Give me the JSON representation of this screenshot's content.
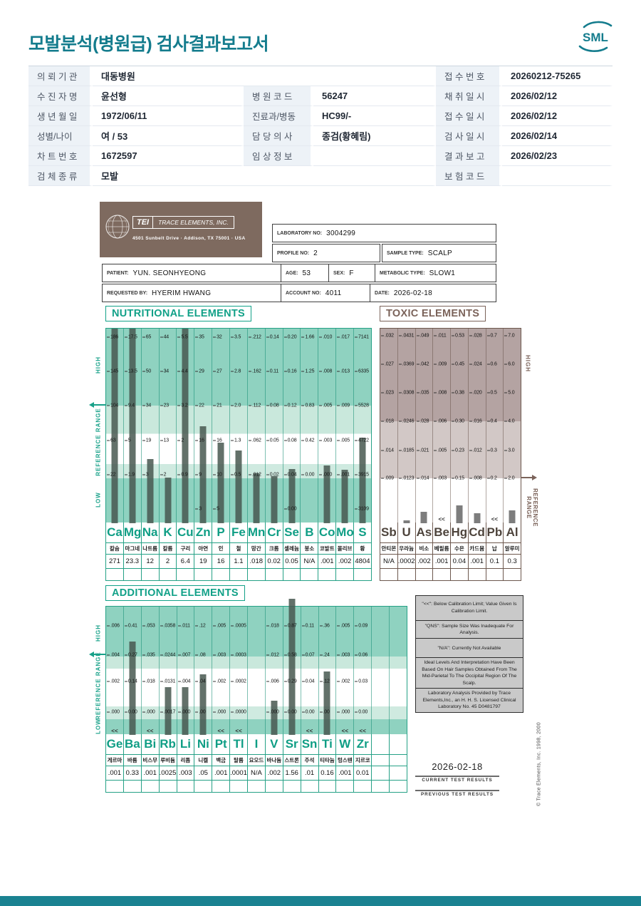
{
  "header": {
    "title": "모발분석(병원급) 검사결과보고서",
    "logo": "SML",
    "accent_color": "#147c8d"
  },
  "info_table": {
    "rows": [
      [
        {
          "t": "l",
          "x": "의 뢰 기 관"
        },
        {
          "t": "v",
          "x": "대동병원",
          "s": 3
        },
        {
          "t": "l",
          "x": "접 수 번 호"
        },
        {
          "t": "v",
          "x": "20260212-75265"
        }
      ],
      [
        {
          "t": "l",
          "x": "수 진 자 명"
        },
        {
          "t": "v",
          "x": "윤선형"
        },
        {
          "t": "l",
          "x": "병 원 코 드"
        },
        {
          "t": "v",
          "x": "56247"
        },
        {
          "t": "l",
          "x": "채 취 일 시"
        },
        {
          "t": "v",
          "x": "2026/02/12"
        }
      ],
      [
        {
          "t": "l",
          "x": "생 년 월 일"
        },
        {
          "t": "v",
          "x": "1972/06/11"
        },
        {
          "t": "l",
          "x": "진료과/병동"
        },
        {
          "t": "v",
          "x": "HC99/-"
        },
        {
          "t": "l",
          "x": "접 수 일 시"
        },
        {
          "t": "v",
          "x": "2026/02/12"
        }
      ],
      [
        {
          "t": "l",
          "x": "성별/나이"
        },
        {
          "t": "v",
          "x": "여 / 53"
        },
        {
          "t": "l",
          "x": "담 당 의 사"
        },
        {
          "t": "v",
          "x": "종검(황혜림)"
        },
        {
          "t": "l",
          "x": "검 사 일 시"
        },
        {
          "t": "v",
          "x": "2026/02/14"
        }
      ],
      [
        {
          "t": "l",
          "x": "차 트 번 호"
        },
        {
          "t": "v",
          "x": "1672597"
        },
        {
          "t": "l",
          "x": "임 상 정 보"
        },
        {
          "t": "v",
          "x": ""
        },
        {
          "t": "l",
          "x": "결 과 보 고"
        },
        {
          "t": "v",
          "x": "2026/02/23"
        }
      ],
      [
        {
          "t": "l",
          "x": "검 체 종 류"
        },
        {
          "t": "v",
          "x": "모발",
          "s": 3
        },
        {
          "t": "l",
          "x": "보 험 코 드"
        },
        {
          "t": "v",
          "x": ""
        }
      ]
    ]
  },
  "tei": {
    "logo_text": "TEI",
    "company": "TRACE ELEMENTS, INC.",
    "address": "4501 Sunbelt Drive  ·  Addison, TX 75001  ·  USA",
    "laboratory_no_label": "LABORATORY NO:",
    "laboratory_no": "3004299",
    "profile_no_label": "PROFILE NO:",
    "profile_no": "2",
    "sample_type_label": "SAMPLE TYPE:",
    "sample_type": "SCALP",
    "patient_label": "PATIENT:",
    "patient": "YUN. SEONHYEONG",
    "age_label": "AGE:",
    "age": "53",
    "sex_label": "SEX:",
    "sex": "F",
    "metabolic_type_label": "METABOLIC TYPE:",
    "metabolic_type": "SLOW1",
    "requested_by_label": "REQUESTED BY:",
    "requested_by": "HYERIM HWANG",
    "account_no_label": "ACCOUNT NO:",
    "account_no": "4011",
    "date_label": "DATE:",
    "date": "2026-02-18"
  },
  "charts": {
    "nutritional": {
      "type": "bar",
      "title": "NUTRITIONAL ELEMENTS",
      "labels": {
        "high": "HIGH",
        "reference": "REFERENCE RANGE",
        "low": "LOW"
      },
      "columns": [
        {
          "sym": "Ca",
          "kr": "칼슘",
          "val": "271",
          "scale": [
            "186",
            "145",
            "104",
            "63",
            "22"
          ],
          "bar": 100,
          "mark": ""
        },
        {
          "sym": "Mg",
          "kr": "마그네슘",
          "val": "23.3",
          "scale": [
            "17.5",
            "13.5",
            "9.4",
            "5",
            "1.9"
          ],
          "bar": 100,
          "mark": ""
        },
        {
          "sym": "Na",
          "kr": "나트륨",
          "val": "12",
          "scale": [
            "65",
            "50",
            "34",
            "19",
            "3"
          ],
          "bar": 33,
          "mark": ""
        },
        {
          "sym": "K",
          "kr": "칼륨",
          "val": "2",
          "scale": [
            "44",
            "34",
            "23",
            "13",
            "2"
          ],
          "bar": 23.5,
          "mark": ""
        },
        {
          "sym": "Cu",
          "kr": "구리",
          "val": "6.4",
          "scale": [
            "5.5",
            "4.4",
            "3.2",
            "2",
            "0.9"
          ],
          "bar": 100,
          "mark": ""
        },
        {
          "sym": "Zn",
          "kr": "아연",
          "val": "19",
          "scale": [
            "35",
            "29",
            "22",
            "16",
            "9",
            "3"
          ],
          "bar": 50,
          "mark": ""
        },
        {
          "sym": "P",
          "kr": "인",
          "val": "16",
          "scale": [
            "32",
            "27",
            "21",
            "16",
            "10",
            "5"
          ],
          "bar": 41.5,
          "mark": ""
        },
        {
          "sym": "Fe",
          "kr": "철",
          "val": "1.1",
          "scale": [
            "3.5",
            "2.8",
            "2.0",
            "1.3",
            "0.5"
          ],
          "bar": 37.5,
          "mark": ""
        },
        {
          "sym": "Mn",
          "kr": "망간",
          "val": ".018",
          "scale": [
            ".212",
            ".162",
            ".112",
            ".062",
            ".012"
          ],
          "bar": 25.5,
          "mark": ""
        },
        {
          "sym": "Cr",
          "kr": "크롬",
          "val": "0.02",
          "scale": [
            "0.14",
            "0.11",
            "0.08",
            "0.05",
            "0.02"
          ],
          "bar": 24,
          "mark": ""
        },
        {
          "sym": "Se",
          "kr": "셀레늄",
          "val": "0.05",
          "scale": [
            "0.20",
            "0.16",
            "0.12",
            "0.08",
            "0.04",
            "0.00"
          ],
          "bar": 28,
          "mark": ""
        },
        {
          "sym": "B",
          "kr": "붕소",
          "val": "N/A",
          "scale": [
            "1.66",
            "1.25",
            "0.83",
            "0.42",
            "0.00"
          ],
          "bar": 0,
          "mark": ""
        },
        {
          "sym": "Co",
          "kr": "코발트",
          "val": ".001",
          "scale": [
            ".010",
            ".008",
            ".005",
            ".003",
            ".000"
          ],
          "bar": 29.5,
          "mark": ""
        },
        {
          "sym": "Mo",
          "kr": "몰리브덴",
          "val": ".002",
          "scale": [
            ".017",
            ".013",
            ".009",
            ".005",
            ".001"
          ],
          "bar": 27.5,
          "mark": ""
        },
        {
          "sym": "S",
          "kr": "황",
          "val": "4804",
          "scale": [
            "7141",
            "6335",
            "5528",
            "4722",
            "3915",
            "3109"
          ],
          "bar": 44,
          "mark": ""
        }
      ]
    },
    "toxic": {
      "type": "bar",
      "title": "TOXIC ELEMENTS",
      "labels": {
        "high": "HIGH",
        "reference": "REFERENCE RANGE"
      },
      "columns": [
        {
          "sym": "Sb",
          "kr": "안티몬",
          "val": "N/A",
          "scale": [
            ".032",
            ".027",
            ".023",
            ".018",
            ".014",
            ".009"
          ],
          "bar": 0,
          "mark": ""
        },
        {
          "sym": "U",
          "kr": "우라늄",
          "val": ".0002",
          "scale": [
            ".0431",
            ".0369",
            ".0308",
            ".0246",
            ".0185",
            ".0123"
          ],
          "bar": 1.5,
          "mark": ""
        },
        {
          "sym": "As",
          "kr": "비소",
          "val": ".002",
          "scale": [
            ".049",
            ".042",
            ".035",
            ".028",
            ".021",
            ".014"
          ],
          "bar": 6,
          "mark": ""
        },
        {
          "sym": "Be",
          "kr": "베릴륨",
          "val": ".001",
          "scale": [
            ".011",
            ".009",
            ".008",
            ".006",
            ".005",
            ".003"
          ],
          "bar": 0,
          "mark": "<<"
        },
        {
          "sym": "Hg",
          "kr": "수은",
          "val": "0.04",
          "scale": [
            "0.53",
            "0.45",
            "0.38",
            "0.30",
            "0.23",
            "0.15"
          ],
          "bar": 9,
          "mark": ""
        },
        {
          "sym": "Cd",
          "kr": "카드뮴",
          "val": ".001",
          "scale": [
            ".028",
            ".024",
            ".020",
            ".016",
            ".012",
            ".008"
          ],
          "bar": 5,
          "mark": ""
        },
        {
          "sym": "Pb",
          "kr": "납",
          "val": "0.1",
          "scale": [
            "0.7",
            "0.6",
            "0.5",
            "0.4",
            "0.3",
            "0.2"
          ],
          "bar": 0,
          "mark": "<<"
        },
        {
          "sym": "Al",
          "kr": "알루미늄",
          "val": "0.3",
          "scale": [
            "7.0",
            "6.0",
            "5.0",
            "4.0",
            "3.0",
            "2.0"
          ],
          "bar": 6.5,
          "mark": ""
        }
      ]
    },
    "additional": {
      "type": "bar",
      "title": "ADDITIONAL ELEMENTS",
      "labels": {
        "high": "HIGH",
        "reference": "REFERENCE RANGE",
        "low": "LOW"
      },
      "columns": [
        {
          "sym": "Ge",
          "kr": "게르마늄",
          "val": ".001",
          "scale": [
            ".006",
            ".004",
            ".002",
            ".000"
          ],
          "bar": 0,
          "mark": "<<"
        },
        {
          "sym": "Ba",
          "kr": "바륨",
          "val": "0.33",
          "scale": [
            "0.41",
            "0.27",
            "0.14",
            "0.00"
          ],
          "bar": 73,
          "mark": ""
        },
        {
          "sym": "Bi",
          "kr": "비스무스",
          "val": ".001",
          "scale": [
            ".053",
            ".035",
            ".018",
            ".000"
          ],
          "bar": 0,
          "mark": "<<"
        },
        {
          "sym": "Rb",
          "kr": "루비듐",
          "val": ".0025",
          "scale": [
            ".0358",
            ".0244",
            ".0131",
            ".0017"
          ],
          "bar": 37,
          "mark": ""
        },
        {
          "sym": "Li",
          "kr": "리튬",
          "val": ".003",
          "scale": [
            ".011",
            ".007",
            ".004",
            ".000"
          ],
          "bar": 37,
          "mark": ""
        },
        {
          "sym": "Ni",
          "kr": "니켈",
          "val": ".05",
          "scale": [
            ".12",
            ".08",
            ".04",
            ".00"
          ],
          "bar": 47.5,
          "mark": ""
        },
        {
          "sym": "Pt",
          "kr": "백금",
          "val": ".001",
          "scale": [
            ".005",
            ".003",
            ".002",
            ".000"
          ],
          "bar": 0,
          "mark": "<<"
        },
        {
          "sym": "Tl",
          "kr": "탈륨",
          "val": ".0001",
          "scale": [
            ".0005",
            ".0003",
            ".0002",
            ".0000"
          ],
          "bar": 0,
          "mark": "<<"
        },
        {
          "sym": "I",
          "kr": "요오드",
          "val": "N/A",
          "scale": [],
          "bar": 0,
          "mark": ""
        },
        {
          "sym": "V",
          "kr": "바나듐",
          "val": ".002",
          "scale": [
            ".018",
            ".012",
            ".006",
            ".000"
          ],
          "bar": 26.5,
          "mark": ""
        },
        {
          "sym": "Sr",
          "kr": "스트론튬",
          "val": "1.56",
          "scale": [
            "0.87",
            "0.58",
            "0.29",
            "0.00"
          ],
          "bar": 106,
          "mark": ""
        },
        {
          "sym": "Sn",
          "kr": "주석",
          "val": ".01",
          "scale": [
            "0.11",
            "0.07",
            "0.04",
            "0.00"
          ],
          "bar": 0,
          "mark": "<<"
        },
        {
          "sym": "Ti",
          "kr": "티타늄",
          "val": "0.16",
          "scale": [
            ".36",
            ".24",
            ".12",
            ".00"
          ],
          "bar": 49.5,
          "mark": ""
        },
        {
          "sym": "W",
          "kr": "텅스텐",
          "val": ".001",
          "scale": [
            ".005",
            ".003",
            ".002",
            ".000"
          ],
          "bar": 0,
          "mark": "<<"
        },
        {
          "sym": "Zr",
          "kr": "지르코늄",
          "val": "0.01",
          "scale": [
            "0.09",
            "0.06",
            "0.03",
            "0.00"
          ],
          "bar": 0,
          "mark": "<<"
        },
        {
          "sym": "",
          "kr": "",
          "val": "",
          "scale": [],
          "bar": 0,
          "mark": ""
        },
        {
          "sym": "",
          "kr": "",
          "val": "",
          "scale": [],
          "bar": 0,
          "mark": ""
        }
      ]
    }
  },
  "notes": [
    "\"<<\": Below Calibration Limit; Value Given Is Calibration Limit.",
    "\"QNS\": Sample Size Was Inadequate For Analysis.",
    "\"N/A\": Currently Not Available",
    "Ideal Levels And Interpretation Have Been Based On Hair Samples Obtained From The Mid-Parietal To The Occipital Region Of The Scalp.",
    "Laboratory Analysis Provided by Trace Elements,Inc., an H. H. S. Licensed Clinical Laboratory No. 45 D0481797"
  ],
  "results": {
    "date": "2026-02-18",
    "current": "CURRENT TEST RESULTS",
    "previous": "PREVIOUS TEST RESULTS",
    "copyright": "© Trace Elements, Inc. 1998, 2000"
  }
}
